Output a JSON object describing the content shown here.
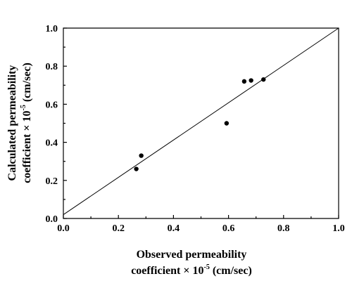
{
  "chart_data": {
    "type": "scatter",
    "xlabel_line1": "Observed permeability",
    "xlabel_line2": "coefficient × 10",
    "xlabel_exp": "-5",
    "xlabel_unit": " (cm/sec)",
    "ylabel_line1": "Calculated permeability",
    "ylabel_line2": "coefficient  × 10",
    "ylabel_exp": "-5",
    "ylabel_unit": " (cm/sec)",
    "xlim": [
      0.0,
      1.0
    ],
    "ylim": [
      0.0,
      1.0
    ],
    "xticks": [
      "0.0",
      "0.2",
      "0.4",
      "0.6",
      "0.8",
      "1.0"
    ],
    "yticks": [
      "0.0",
      "0.2",
      "0.4",
      "0.6",
      "0.8",
      "1.0"
    ],
    "grid": false,
    "reference_line": {
      "from": [
        0.0,
        0.02
      ],
      "to": [
        1.0,
        1.0
      ]
    },
    "points": [
      {
        "x": 0.265,
        "y": 0.26
      },
      {
        "x": 0.283,
        "y": 0.33
      },
      {
        "x": 0.593,
        "y": 0.5
      },
      {
        "x": 0.657,
        "y": 0.72
      },
      {
        "x": 0.682,
        "y": 0.725
      },
      {
        "x": 0.727,
        "y": 0.73
      }
    ]
  }
}
